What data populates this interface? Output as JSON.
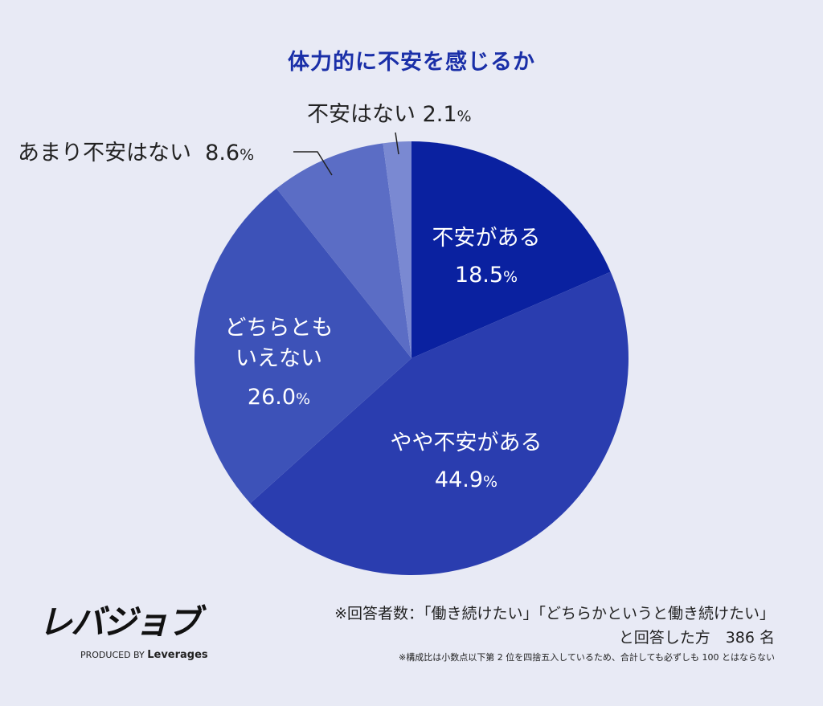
{
  "chart_data": {
    "type": "pie",
    "title": "体力的に不安を感じるか",
    "slices": [
      {
        "label": "不安がある",
        "value": 18.5,
        "display": "18.5",
        "color": "#0a21a0"
      },
      {
        "label": "やや不安がある",
        "value": 44.9,
        "display": "44.9",
        "color": "#2a3daf"
      },
      {
        "label": "どちらとも\nいえない",
        "label_line1": "どちらとも",
        "label_line2": "いえない",
        "value": 26.0,
        "display": "26.0",
        "color": "#3d52b8"
      },
      {
        "label": "あまり不安はない",
        "value": 8.6,
        "display": "8.6",
        "color": "#5b6dc5"
      },
      {
        "label": "不安はない",
        "value": 2.1,
        "display": "2.1",
        "color": "#7a89d2"
      }
    ],
    "percent_sign": "%",
    "start": "top",
    "direction": "clockwise"
  },
  "brand": {
    "logo": "レバジョブ",
    "produced_by": "PRODUCED BY",
    "company": "Leverages"
  },
  "notes": {
    "respondents_line1": "※回答者数：「働き続けたい」「どちらかというと働き続けたい」",
    "respondents_line2": "と回答した方　386 名",
    "rounding": "※構成比は小数点以下第 2 位を四捨五入しているため、合計しても必ずしも 100 とはならない"
  }
}
